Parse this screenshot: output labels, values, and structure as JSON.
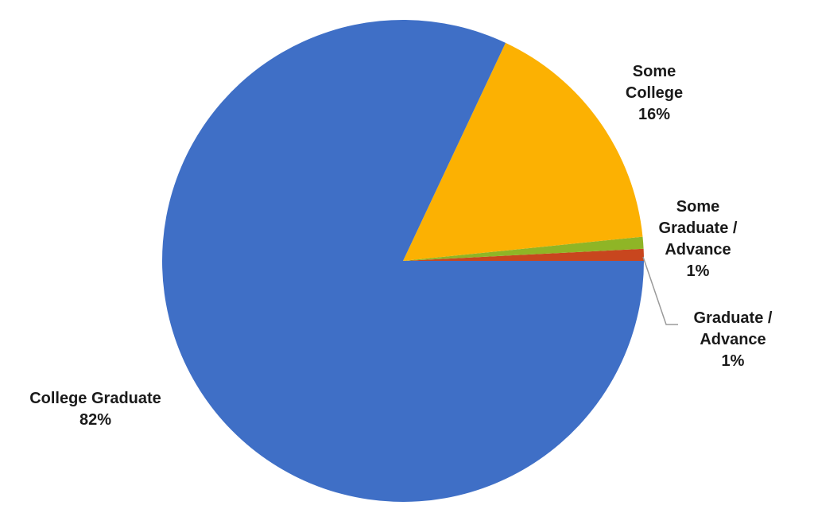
{
  "chart_data": {
    "type": "pie",
    "slices": [
      {
        "label_lines": [
          "College Graduate"
        ],
        "percent_label": "82%",
        "value": 82.0,
        "color": "#3F6FC6"
      },
      {
        "label_lines": [
          "Some",
          "College"
        ],
        "percent_label": "16%",
        "value": 16.4,
        "color": "#FCB102"
      },
      {
        "label_lines": [
          "Some",
          "Graduate /",
          "Advance"
        ],
        "percent_label": "1%",
        "value": 0.8,
        "color": "#8FB526"
      },
      {
        "label_lines": [
          "Graduate /",
          "Advance"
        ],
        "percent_label": "1%",
        "value": 0.8,
        "color": "#C8461E"
      }
    ],
    "start_angle_deg": 0,
    "direction": "counterclockwise",
    "legend": "none"
  }
}
